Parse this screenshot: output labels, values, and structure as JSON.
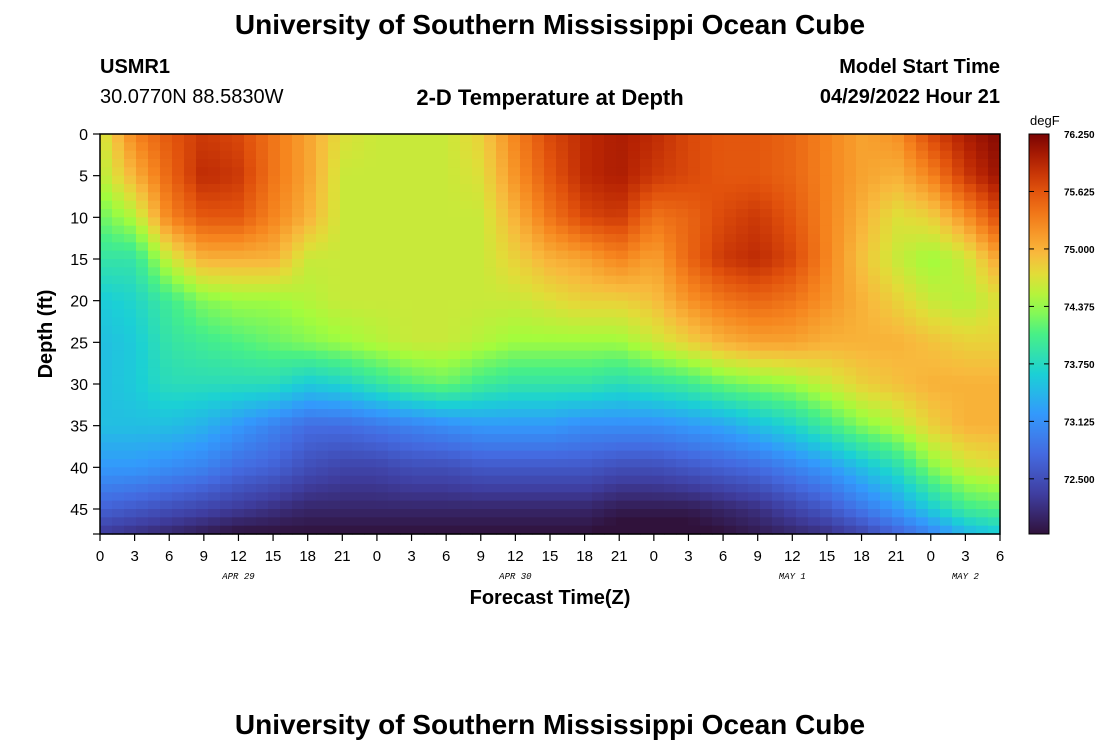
{
  "header": {
    "title": "University of Southern Mississippi Ocean Cube",
    "station_id": "USMR1",
    "station_coords": "30.0770N  88.5830W",
    "plot_title": "2-D Temperature at Depth",
    "model_start_label": "Model Start Time",
    "model_start_value": "04/29/2022 Hour 21"
  },
  "footer": {
    "title": "University of Southern Mississippi Ocean Cube"
  },
  "chart_data": {
    "type": "heatmap",
    "title": "2-D Temperature at Depth",
    "xlabel": "Forecast Time(Z)",
    "ylabel": "Depth (ft)",
    "units": "degF",
    "xlim_hours": [
      0,
      78
    ],
    "ylim": [
      0,
      48
    ],
    "y_ticks": [
      0,
      5,
      10,
      15,
      20,
      25,
      30,
      35,
      40,
      45
    ],
    "x_ticks": [
      "0",
      "3",
      "6",
      "9",
      "12",
      "15",
      "18",
      "21",
      "0",
      "3",
      "6",
      "9",
      "12",
      "15",
      "18",
      "21",
      "0",
      "3",
      "6",
      "9",
      "12",
      "15",
      "18",
      "21",
      "0",
      "3",
      "6"
    ],
    "day_labels": [
      {
        "label": "APR 29",
        "hour": 12
      },
      {
        "label": "APR 30",
        "hour": 36
      },
      {
        "label": "MAY 1",
        "hour": 60
      },
      {
        "label": "MAY 2",
        "hour": 75
      }
    ],
    "colorbar": {
      "label": "degF",
      "min": 71.9,
      "max": 76.25,
      "tick_values": [
        76.25,
        75.625,
        75.0,
        74.375,
        73.75,
        73.125,
        72.5
      ],
      "tick_labels": [
        "76.250",
        "75.625",
        "75.000",
        "74.375",
        "73.750",
        "73.125",
        "72.500"
      ]
    },
    "profile_depths_ft": [
      0,
      5,
      10,
      15,
      20,
      25,
      30,
      35,
      40,
      45,
      48
    ],
    "profiles": [
      {
        "hour": 0,
        "temps": [
          74.6,
          74.5,
          74.2,
          73.9,
          73.6,
          73.5,
          73.5,
          73.5,
          73.2,
          72.7,
          72.3
        ]
      },
      {
        "hour": 3,
        "temps": [
          75.3,
          75.0,
          74.5,
          73.9,
          73.7,
          73.6,
          73.6,
          73.5,
          73.2,
          72.6,
          72.2
        ]
      },
      {
        "hour": 6,
        "temps": [
          75.6,
          75.5,
          75.3,
          74.6,
          74.0,
          73.9,
          73.8,
          73.5,
          73.1,
          72.5,
          72.1
        ]
      },
      {
        "hour": 9,
        "temps": [
          75.8,
          75.9,
          75.6,
          75.0,
          74.3,
          74.0,
          73.8,
          73.4,
          73.0,
          72.4,
          72.0
        ]
      },
      {
        "hour": 12,
        "temps": [
          75.7,
          75.8,
          75.6,
          75.0,
          74.4,
          74.1,
          73.8,
          73.2,
          72.8,
          72.3,
          71.9
        ]
      },
      {
        "hour": 15,
        "temps": [
          75.4,
          75.4,
          75.3,
          75.0,
          74.4,
          74.2,
          73.8,
          73.0,
          72.7,
          72.2,
          71.9
        ]
      },
      {
        "hour": 18,
        "temps": [
          75.1,
          75.1,
          75.0,
          74.6,
          74.5,
          74.3,
          73.6,
          72.8,
          72.5,
          72.1,
          71.9
        ]
      },
      {
        "hour": 21,
        "temps": [
          74.7,
          74.6,
          74.6,
          74.6,
          74.6,
          74.4,
          73.7,
          72.8,
          72.4,
          72.1,
          71.9
        ]
      },
      {
        "hour": 24,
        "temps": [
          74.6,
          74.6,
          74.6,
          74.6,
          74.6,
          74.5,
          73.9,
          72.9,
          72.4,
          72.1,
          71.9
        ]
      },
      {
        "hour": 27,
        "temps": [
          74.6,
          74.6,
          74.6,
          74.6,
          74.6,
          74.6,
          74.1,
          73.0,
          72.5,
          72.1,
          71.9
        ]
      },
      {
        "hour": 30,
        "temps": [
          74.6,
          74.6,
          74.6,
          74.6,
          74.6,
          74.6,
          74.2,
          73.1,
          72.5,
          72.1,
          71.9
        ]
      },
      {
        "hour": 33,
        "temps": [
          74.8,
          74.7,
          74.6,
          74.6,
          74.6,
          74.5,
          74.0,
          73.2,
          72.6,
          72.1,
          71.9
        ]
      },
      {
        "hour": 36,
        "temps": [
          75.3,
          75.2,
          75.0,
          74.8,
          74.6,
          74.4,
          73.9,
          73.2,
          72.6,
          72.1,
          71.9
        ]
      },
      {
        "hour": 39,
        "temps": [
          75.7,
          75.6,
          75.4,
          75.0,
          74.7,
          74.4,
          73.9,
          73.2,
          72.6,
          72.1,
          71.9
        ]
      },
      {
        "hour": 42,
        "temps": [
          75.9,
          75.9,
          75.7,
          75.1,
          74.8,
          74.4,
          73.9,
          73.1,
          72.6,
          72.1,
          71.9
        ]
      },
      {
        "hour": 45,
        "temps": [
          76.0,
          76.0,
          75.8,
          75.3,
          74.8,
          74.4,
          73.8,
          73.1,
          72.5,
          72.0,
          71.8
        ]
      },
      {
        "hour": 48,
        "temps": [
          75.9,
          75.8,
          75.4,
          75.1,
          74.9,
          74.6,
          73.9,
          73.1,
          72.5,
          72.0,
          71.8
        ]
      },
      {
        "hour": 51,
        "temps": [
          75.7,
          75.7,
          75.5,
          75.5,
          75.2,
          74.8,
          74.0,
          73.2,
          72.6,
          72.0,
          71.8
        ]
      },
      {
        "hour": 54,
        "temps": [
          75.6,
          75.6,
          75.7,
          75.8,
          75.4,
          75.0,
          74.2,
          73.3,
          72.7,
          72.1,
          71.9
        ]
      },
      {
        "hour": 57,
        "temps": [
          75.6,
          75.6,
          75.8,
          75.9,
          75.5,
          75.1,
          74.3,
          73.5,
          72.8,
          72.2,
          72.0
        ]
      },
      {
        "hour": 60,
        "temps": [
          75.5,
          75.5,
          75.6,
          75.7,
          75.4,
          75.1,
          74.4,
          73.7,
          73.0,
          72.4,
          72.1
        ]
      },
      {
        "hour": 63,
        "temps": [
          75.3,
          75.3,
          75.3,
          75.3,
          75.2,
          75.0,
          74.6,
          74.0,
          73.2,
          72.6,
          72.2
        ]
      },
      {
        "hour": 66,
        "temps": [
          75.1,
          75.1,
          75.0,
          74.9,
          75.0,
          75.0,
          74.8,
          74.3,
          73.5,
          72.9,
          72.4
        ]
      },
      {
        "hour": 69,
        "temps": [
          75.2,
          75.0,
          74.7,
          74.6,
          74.8,
          75.0,
          74.9,
          74.5,
          73.8,
          73.2,
          72.7
        ]
      },
      {
        "hour": 72,
        "temps": [
          75.7,
          75.3,
          74.8,
          74.4,
          74.6,
          74.9,
          75.0,
          74.8,
          74.3,
          73.6,
          73.0
        ]
      },
      {
        "hour": 75,
        "temps": [
          76.0,
          75.8,
          75.2,
          74.6,
          74.5,
          74.8,
          75.0,
          75.0,
          74.6,
          74.0,
          73.4
        ]
      },
      {
        "hour": 78,
        "temps": [
          76.2,
          76.1,
          75.7,
          75.1,
          74.7,
          74.8,
          75.0,
          75.0,
          74.7,
          74.1,
          73.6
        ]
      }
    ]
  }
}
